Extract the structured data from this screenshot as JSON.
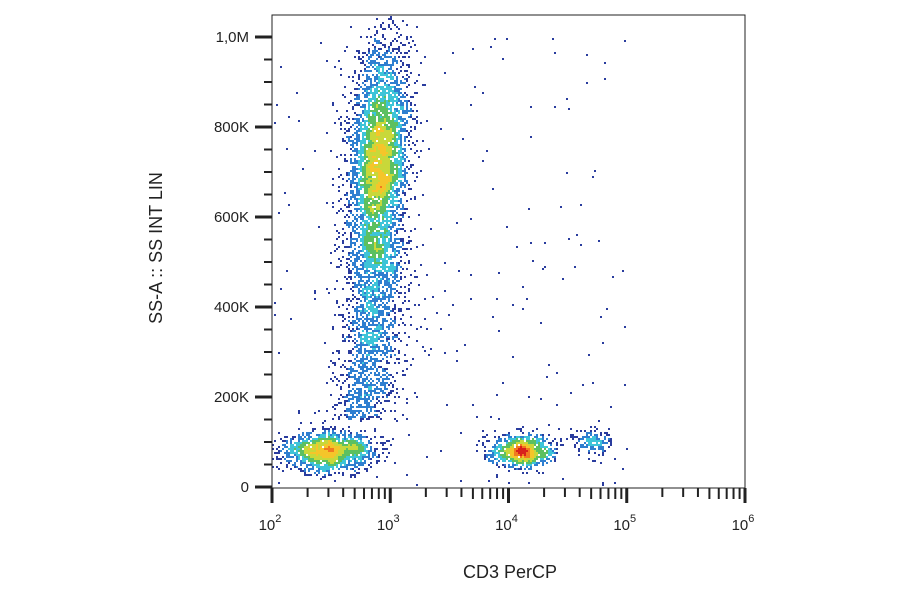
{
  "chart_data": {
    "type": "heatmap",
    "subtype": "flow-cytometry-density-dot-plot",
    "xlabel": "CD3 PerCP",
    "ylabel": "SS-A :: SS INT LIN",
    "x_scale": "log",
    "xlim": [
      100,
      1000000
    ],
    "ylim": [
      0,
      1050000
    ],
    "x_ticks": [
      {
        "value": 100,
        "base": "10",
        "exp": "2"
      },
      {
        "value": 1000,
        "base": "10",
        "exp": "3"
      },
      {
        "value": 10000,
        "base": "10",
        "exp": "4"
      },
      {
        "value": 100000,
        "base": "10",
        "exp": "5"
      },
      {
        "value": 1000000,
        "base": "10",
        "exp": "6"
      }
    ],
    "y_ticks": [
      {
        "value": 0,
        "label": "0"
      },
      {
        "value": 200000,
        "label": "200K"
      },
      {
        "value": 400000,
        "label": "400K"
      },
      {
        "value": 600000,
        "label": "600K"
      },
      {
        "value": 800000,
        "label": "800K"
      },
      {
        "value": 1000000,
        "label": "1,0M"
      }
    ],
    "colormap": [
      "#2a3c9e",
      "#2f7fd0",
      "#3ec4d8",
      "#5cc060",
      "#c8d83a",
      "#f5c52a",
      "#f07a20",
      "#d8201c"
    ],
    "grid": false,
    "legend": "none",
    "populations": [
      {
        "x_center": 300,
        "x_spread_log10": 0.2,
        "y_center": 80000,
        "y_spread": 22000,
        "events": 1500
      },
      {
        "x_center": 800,
        "x_spread_log10": 0.12,
        "y_center": 720000,
        "y_spread": 130000,
        "events": 4500
      },
      {
        "x_center": 600,
        "x_spread_log10": 0.13,
        "y_range": [
          150000,
          550000
        ],
        "events": 1600
      },
      {
        "x_center": 13000,
        "x_spread_log10": 0.13,
        "y_center": 80000,
        "y_spread": 18000,
        "events": 1000
      },
      {
        "x_center": 50000,
        "x_spread_log10": 0.08,
        "y_center": 100000,
        "y_spread": 15000,
        "events": 160
      },
      {
        "x_range": [
          100,
          100000
        ],
        "y_range": [
          0,
          1000000
        ],
        "events": 220
      }
    ]
  }
}
